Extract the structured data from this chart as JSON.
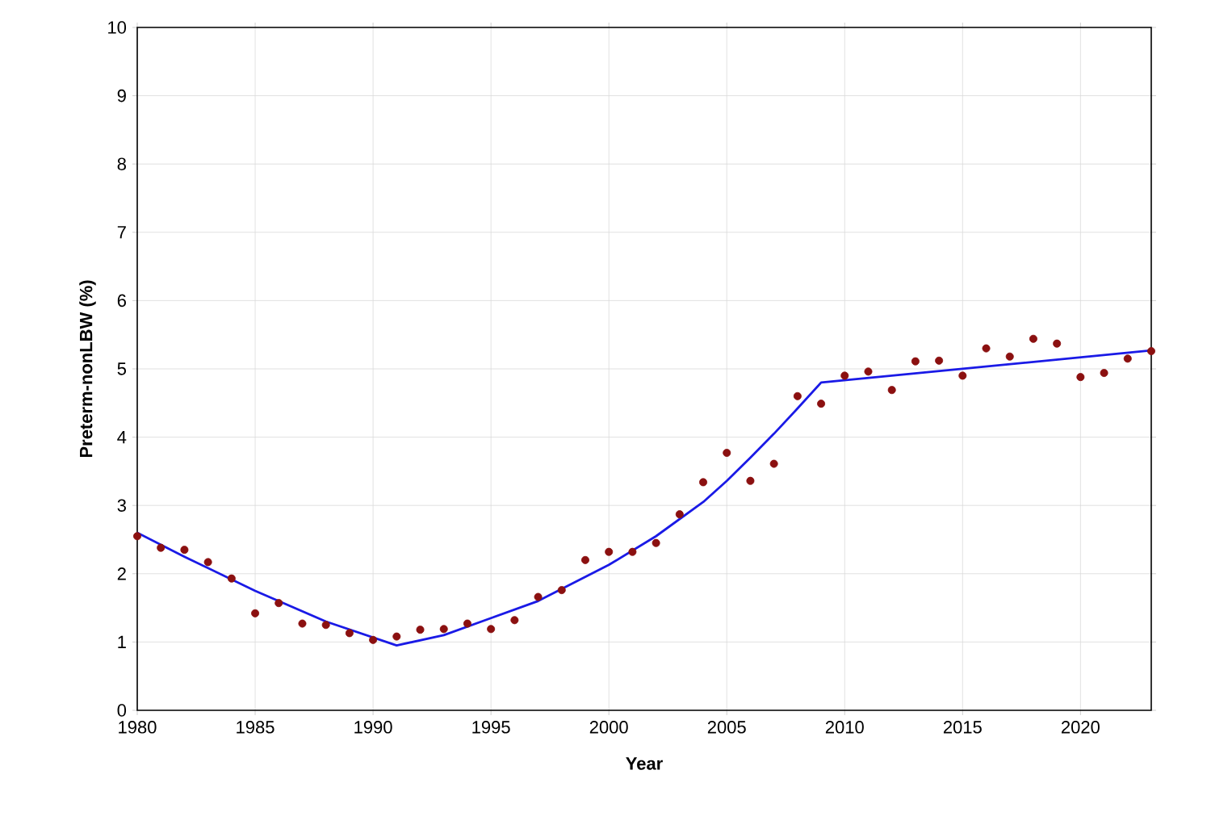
{
  "chart_data": {
    "type": "scatter",
    "xlabel": "Year",
    "ylabel": "Preterm-nonLBW (%)",
    "xlim": [
      1980,
      2023
    ],
    "ylim": [
      0,
      10
    ],
    "xticks": [
      1980,
      1985,
      1990,
      1995,
      2000,
      2005,
      2010,
      2015,
      2020
    ],
    "yticks": [
      0,
      1,
      2,
      3,
      4,
      5,
      6,
      7,
      8,
      9,
      10
    ],
    "grid": true,
    "series": [
      {
        "color": "#8b1010",
        "marker": "circle",
        "x": [
          1980,
          1981,
          1982,
          1983,
          1984,
          1985,
          1986,
          1987,
          1988,
          1989,
          1990,
          1991,
          1992,
          1993,
          1994,
          1995,
          1996,
          1997,
          1998,
          1999,
          2000,
          2001,
          2002,
          2003,
          2004,
          2005,
          2006,
          2007,
          2008,
          2009,
          2010,
          2011,
          2012,
          2013,
          2014,
          2015,
          2016,
          2017,
          2018,
          2019,
          2020,
          2021,
          2022,
          2023
        ],
        "values": [
          2.55,
          2.38,
          2.35,
          2.17,
          1.93,
          1.42,
          1.57,
          1.27,
          1.25,
          1.13,
          1.03,
          1.08,
          1.18,
          1.19,
          1.27,
          1.19,
          1.32,
          1.66,
          1.76,
          2.2,
          2.32,
          2.32,
          2.45,
          2.87,
          3.34,
          3.77,
          3.36,
          3.61,
          4.6,
          4.49,
          4.9,
          4.96,
          4.69,
          5.11,
          5.12,
          4.9,
          5.3,
          5.18,
          5.44,
          5.37,
          4.88,
          4.94,
          5.15,
          5.26
        ]
      },
      {
        "type": "line",
        "color": "#1a1ae6",
        "marker": "none",
        "line_style": "solid",
        "x": [
          1980,
          1982,
          1985,
          1988,
          1991,
          1993,
          1995,
          1997,
          2000,
          2002,
          2004,
          2005,
          2006,
          2007,
          2008,
          2009,
          2023
        ],
        "values": [
          2.6,
          2.25,
          1.75,
          1.3,
          0.95,
          1.1,
          1.35,
          1.6,
          2.13,
          2.55,
          3.05,
          3.36,
          3.7,
          4.05,
          4.42,
          4.8,
          5.27
        ]
      }
    ]
  }
}
